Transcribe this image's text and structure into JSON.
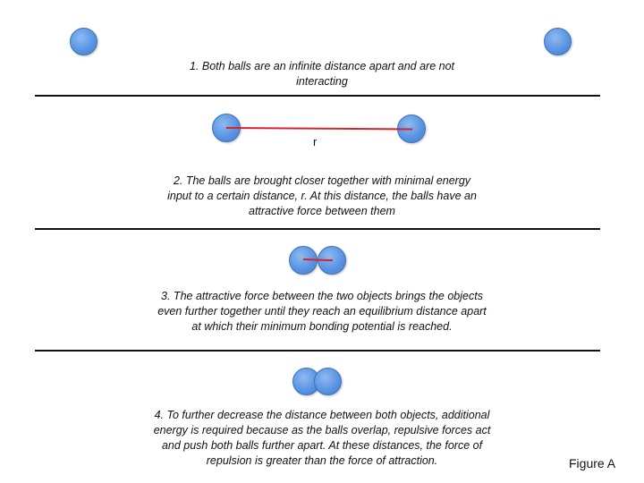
{
  "steps": [
    {
      "caption": "1. Both balls are an infinite distance apart and are not interacting"
    },
    {
      "caption": "2. The balls are brought closer together with minimal energy input to a certain distance, r.  At this distance, the balls have an attractive force between them",
      "distance_label": "r"
    },
    {
      "caption": "3. The attractive force between the two objects brings the objects even further together until they reach an equilibrium distance apart at which their minimum bonding potential is reached."
    },
    {
      "caption": "4.  To further decrease the distance between both objects, additional energy is required because as the balls overlap, repulsive forces act and push both balls further apart.  At these distances, the force of repulsion is greater than the force of attraction."
    }
  ],
  "figure_label": "Figure A",
  "colors": {
    "ball": "#5a95e3",
    "bond": "#d9232a",
    "divider": "#111111"
  }
}
